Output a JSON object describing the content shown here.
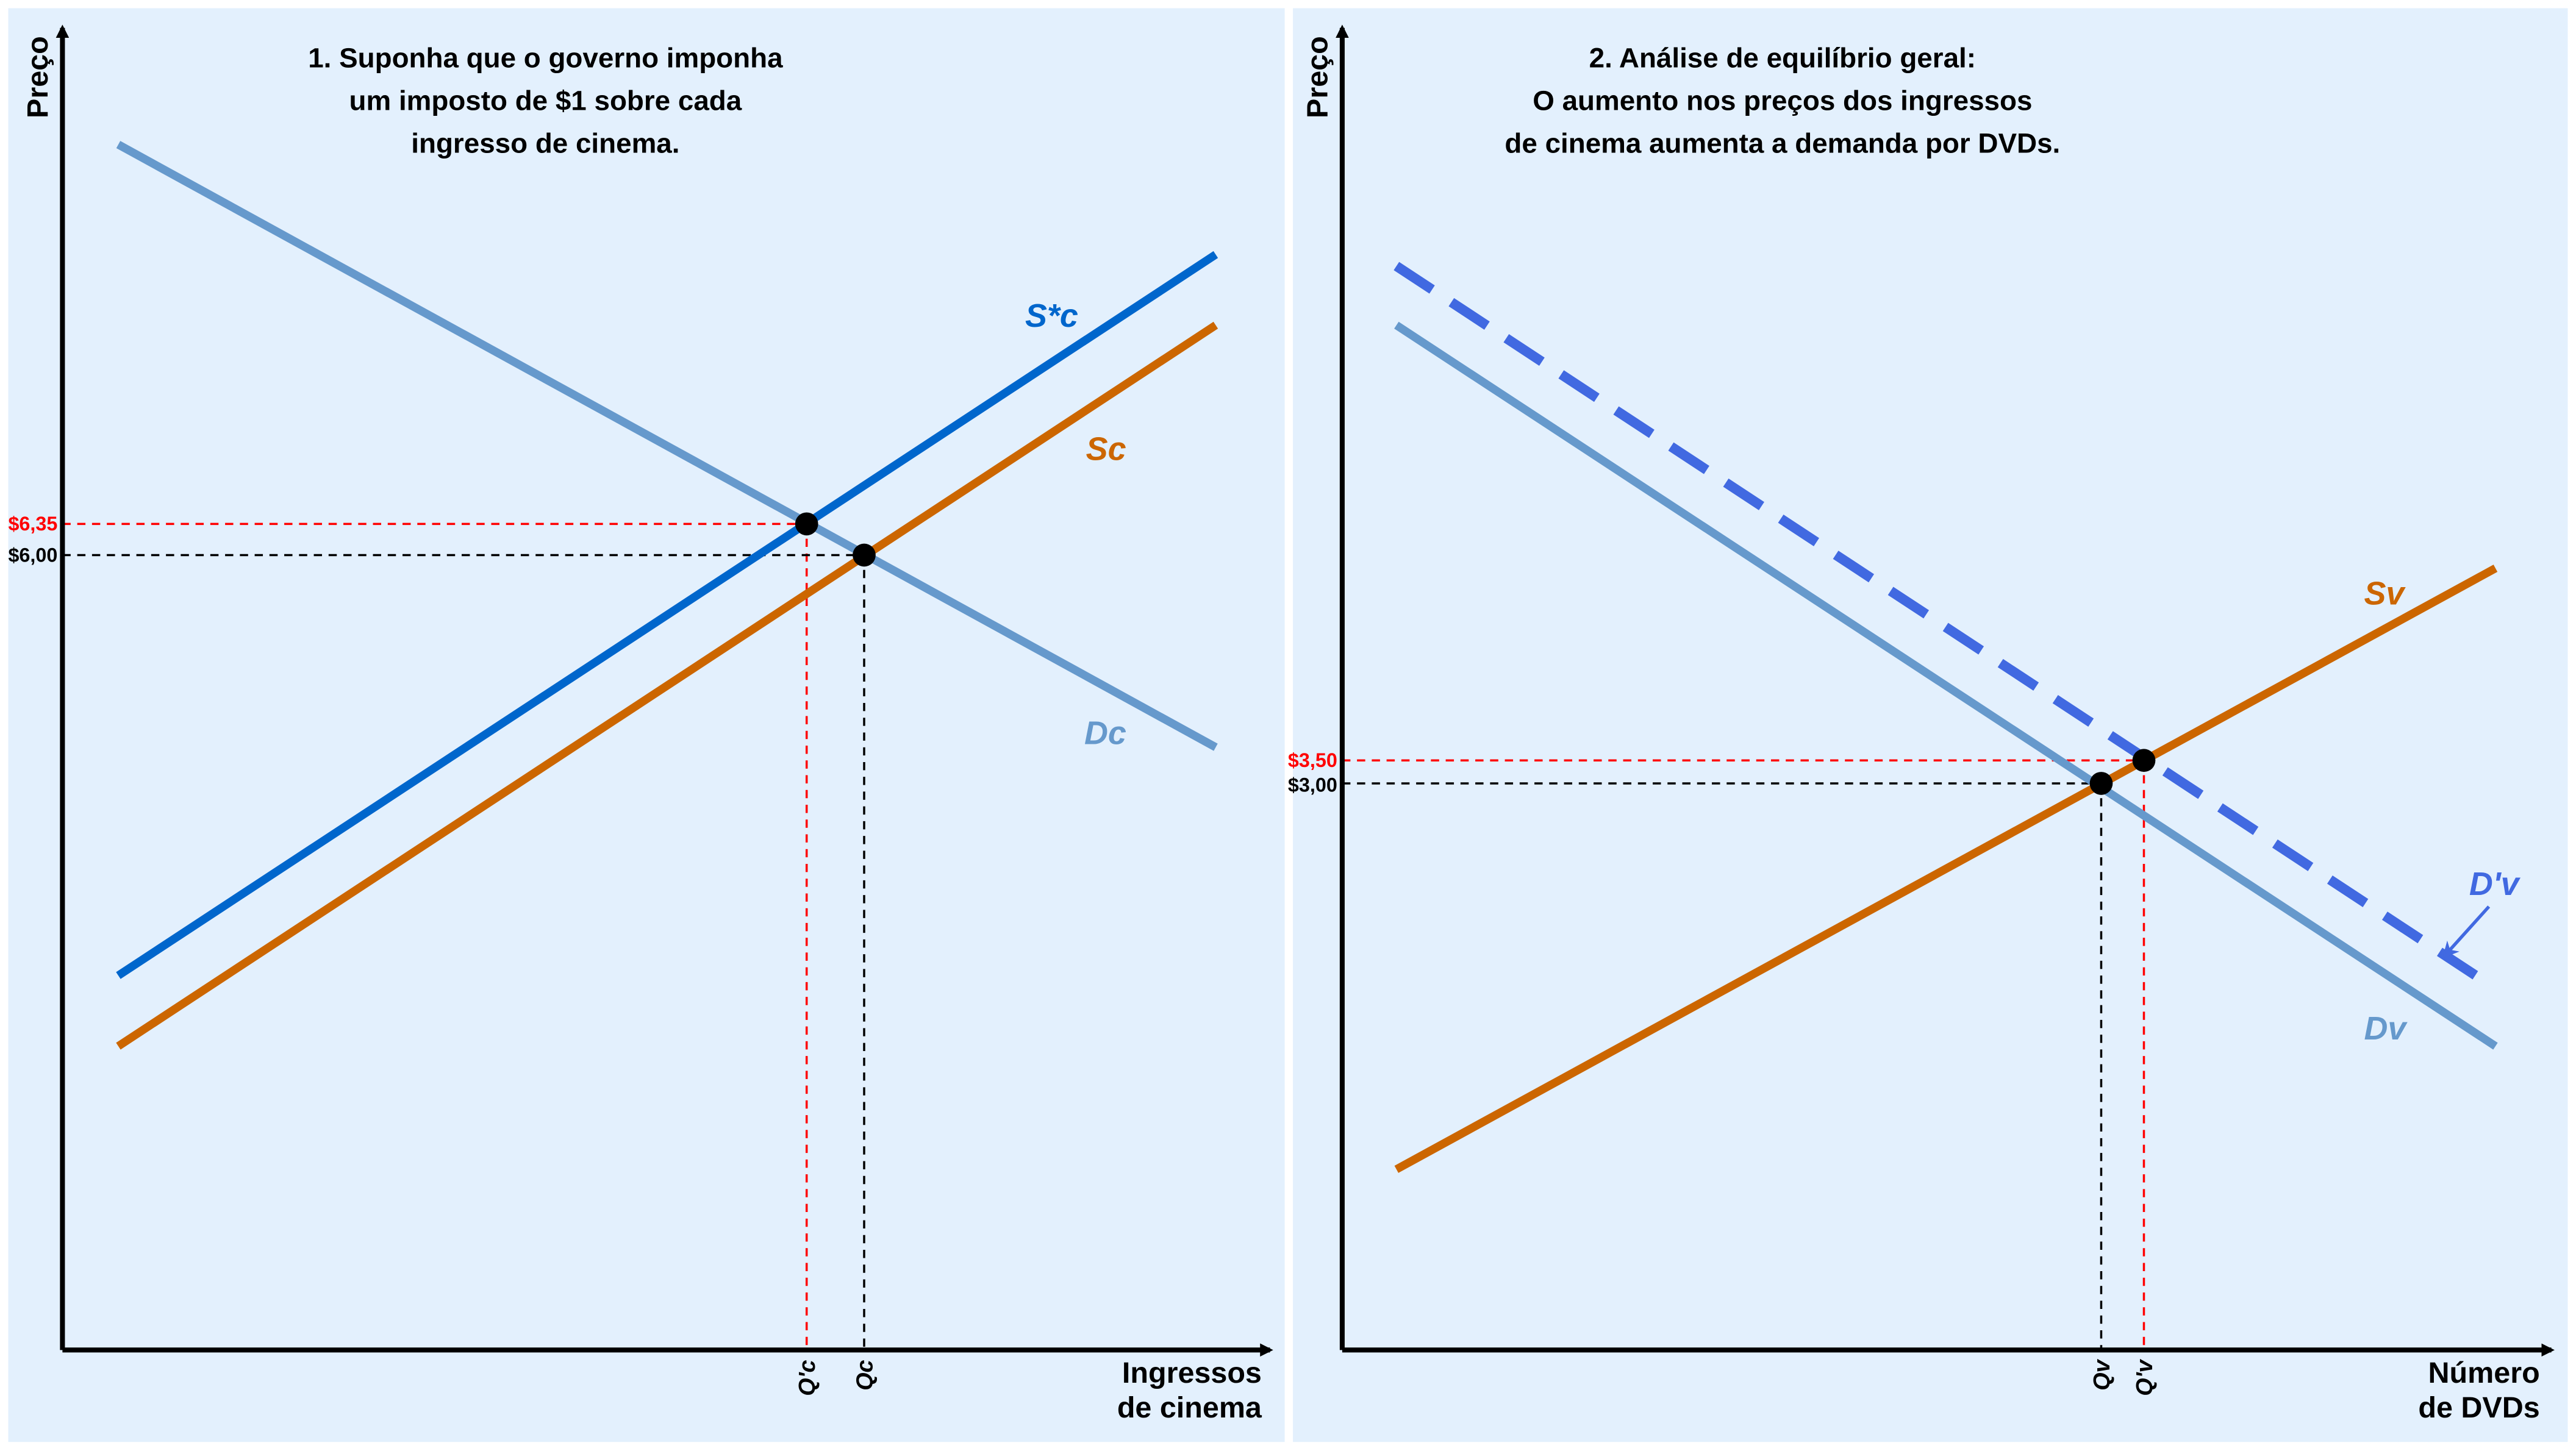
{
  "chart_data": [
    {
      "type": "line",
      "title_lines": [
        "1. Suponha que o governo imponha",
        "um imposto de $1 sobre cada",
        "ingresso de cinema."
      ],
      "ylabel": "Preço",
      "xlabel_lines": [
        "Ingressos",
        "de cinema"
      ],
      "series": [
        {
          "name": "S*c",
          "color": "#0066cc"
        },
        {
          "name": "Sc",
          "color": "#cc6600"
        },
        {
          "name": "Dc",
          "color": "#6699cc"
        }
      ],
      "price_ticks": [
        {
          "label": "$6,35",
          "value": 6.35,
          "color": "#ff0000"
        },
        {
          "label": "$6,00",
          "value": 6.0,
          "color": "#000000"
        }
      ],
      "quantity_ticks": [
        "Q'c",
        "Qc"
      ]
    },
    {
      "type": "line",
      "title_lines": [
        "2. Análise de equilíbrio geral:",
        "O aumento nos preços dos ingressos",
        "de cinema aumenta a demanda por DVDs."
      ],
      "ylabel": "Preço",
      "xlabel_lines": [
        "Número",
        "de DVDs"
      ],
      "series": [
        {
          "name": "Sv",
          "color": "#cc6600"
        },
        {
          "name": "D'v",
          "color": "#4169e1"
        },
        {
          "name": "Dv",
          "color": "#6699cc"
        }
      ],
      "price_ticks": [
        {
          "label": "$3,50",
          "value": 3.5,
          "color": "#ff0000"
        },
        {
          "label": "$3,00",
          "value": 3.0,
          "color": "#000000"
        }
      ],
      "quantity_ticks": [
        "Qv",
        "Q'v"
      ]
    }
  ]
}
